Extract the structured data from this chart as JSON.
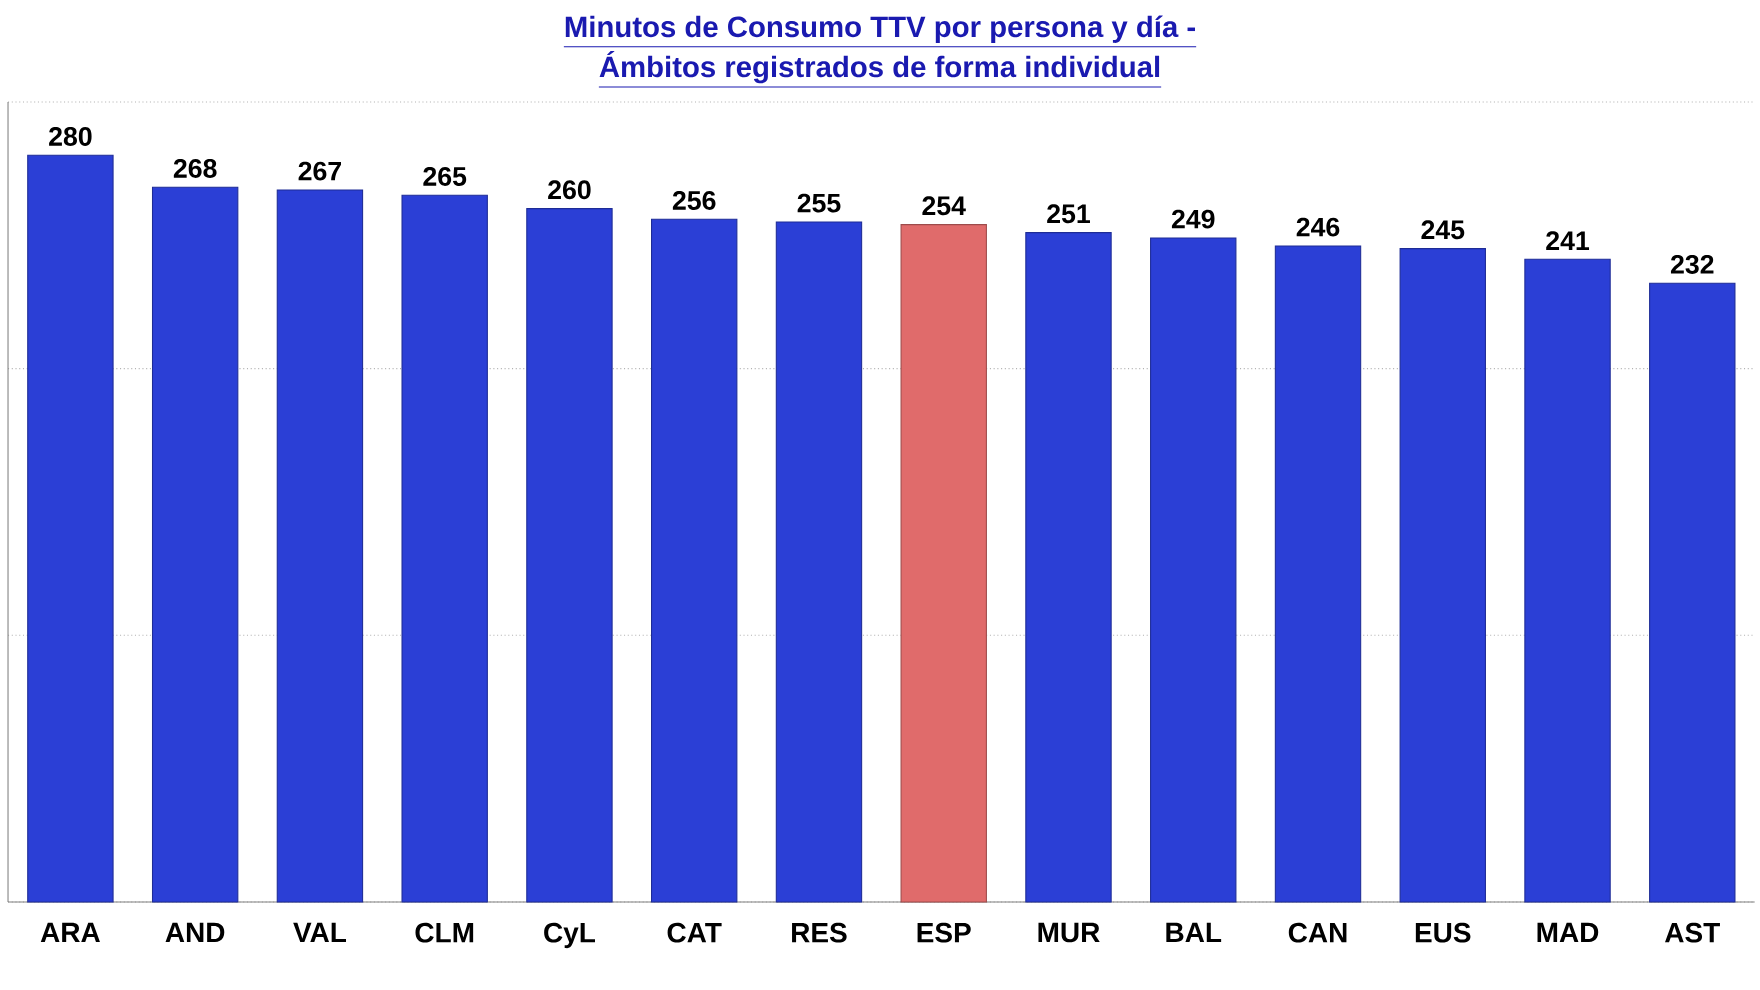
{
  "chart_data": {
    "type": "bar",
    "title": "Minutos de Consumo TTV por persona y día -",
    "subtitle": "Ámbitos registrados de forma individual",
    "categories": [
      "ARA",
      "AND",
      "VAL",
      "CLM",
      "CyL",
      "CAT",
      "RES",
      "ESP",
      "MUR",
      "BAL",
      "CAN",
      "EUS",
      "MAD",
      "AST"
    ],
    "values": [
      280,
      268,
      267,
      265,
      260,
      256,
      255,
      254,
      251,
      249,
      246,
      245,
      241,
      232
    ],
    "colors": [
      "#2b3fd6",
      "#2b3fd6",
      "#2b3fd6",
      "#2b3fd6",
      "#2b3fd6",
      "#2b3fd6",
      "#2b3fd6",
      "#e06b6b",
      "#2b3fd6",
      "#2b3fd6",
      "#2b3fd6",
      "#2b3fd6",
      "#2b3fd6",
      "#2b3fd6"
    ],
    "ylim": [
      0,
      300
    ],
    "yticks": [
      {
        "value": 0,
        "label": null
      },
      {
        "value": 100,
        "label": null
      },
      {
        "value": 200,
        "label": null
      },
      {
        "value": 300,
        "label": null
      }
    ],
    "grid": "y",
    "tick_labels": "x",
    "data_labels": true
  }
}
